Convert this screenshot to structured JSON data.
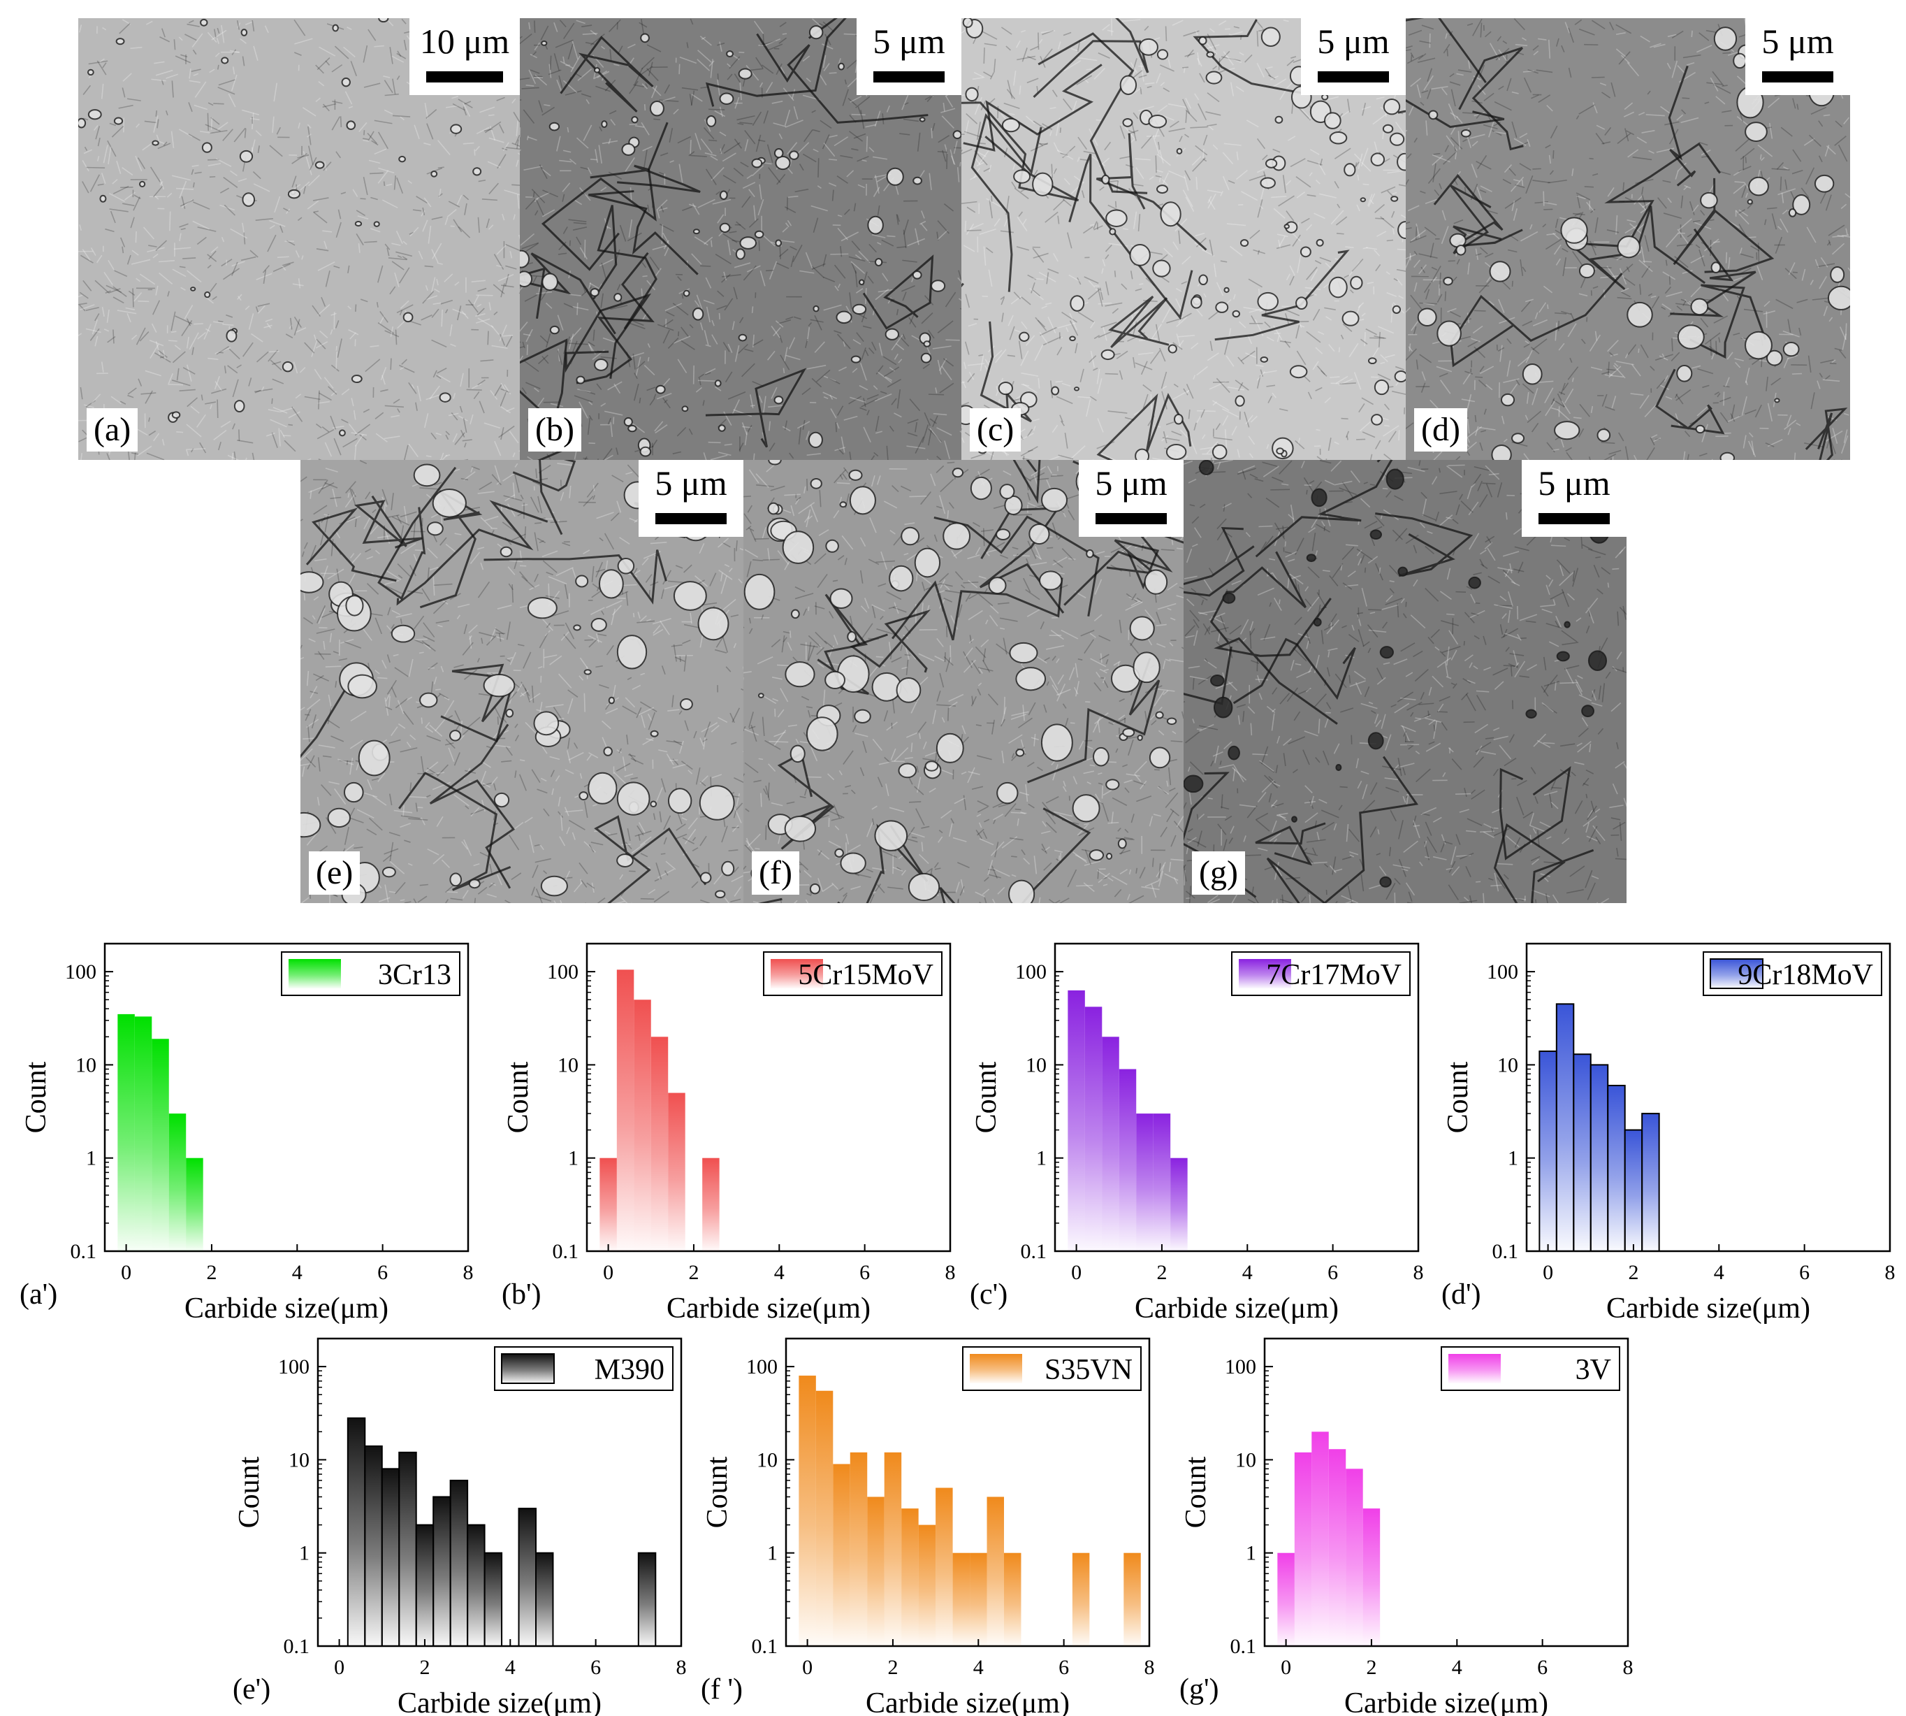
{
  "sem_panels": [
    {
      "id": "a",
      "label": "(a)",
      "scale": "10 μm",
      "tone": "#b9b9b9"
    },
    {
      "id": "b",
      "label": "(b)",
      "scale": "5 μm",
      "tone": "#7e7e7e"
    },
    {
      "id": "c",
      "label": "(c)",
      "scale": "5 μm",
      "tone": "#c9c9c9"
    },
    {
      "id": "d",
      "label": "(d)",
      "scale": "5 μm",
      "tone": "#8c8c8c"
    },
    {
      "id": "e",
      "label": "(e)",
      "scale": "5 μm",
      "tone": "#a4a4a4"
    },
    {
      "id": "f",
      "label": "(f)",
      "scale": "5 μm",
      "tone": "#9b9b9b"
    },
    {
      "id": "g",
      "label": "(g)",
      "scale": "5 μm",
      "tone": "#7a7a7a"
    }
  ],
  "chart_data": [
    {
      "type": "bar",
      "panel": "(a')",
      "legend": "3Cr13",
      "color": "#00e000",
      "xlabel": "Carbide size(μm)",
      "ylabel": "Count",
      "yscale": "log",
      "ylim": [
        0.1,
        200
      ],
      "xlim": [
        -0.5,
        8
      ],
      "xticks": [
        0,
        2,
        4,
        6,
        8
      ],
      "yticks": [
        "0.1",
        "1",
        "10",
        "100"
      ],
      "bar_width": 0.4,
      "x": [
        0,
        0.4,
        0.8,
        1.2,
        1.6
      ],
      "values": [
        35,
        33,
        19,
        3,
        1
      ]
    },
    {
      "type": "bar",
      "panel": "(b')",
      "legend": "5Cr15MoV",
      "color": "#f05050",
      "xlabel": "Carbide size(μm)",
      "ylabel": "Count",
      "yscale": "log",
      "ylim": [
        0.1,
        200
      ],
      "xlim": [
        -0.5,
        8
      ],
      "xticks": [
        0,
        2,
        4,
        6,
        8
      ],
      "yticks": [
        "0.1",
        "1",
        "10",
        "100"
      ],
      "bar_width": 0.4,
      "x": [
        0,
        0.4,
        0.8,
        1.2,
        1.6,
        2.0,
        2.4
      ],
      "values": [
        1,
        105,
        50,
        20,
        5,
        0,
        1
      ]
    },
    {
      "type": "bar",
      "panel": "(c')",
      "legend": "7Cr17MoV",
      "color": "#8a22e0",
      "xlabel": "Carbide size(μm)",
      "ylabel": "Count",
      "yscale": "log",
      "ylim": [
        0.1,
        200
      ],
      "xlim": [
        -0.5,
        8
      ],
      "xticks": [
        0,
        2,
        4,
        6,
        8
      ],
      "yticks": [
        "0.1",
        "1",
        "10",
        "100"
      ],
      "bar_width": 0.4,
      "x": [
        0,
        0.4,
        0.8,
        1.2,
        1.6,
        2.0,
        2.4
      ],
      "values": [
        63,
        42,
        20,
        9,
        3,
        3,
        1
      ]
    },
    {
      "type": "bar",
      "panel": "(d')",
      "legend": "9Cr18MoV",
      "color": "#3a55d8",
      "xlabel": "Carbide size(μm)",
      "ylabel": "Count",
      "yscale": "log",
      "ylim": [
        0.1,
        200
      ],
      "xlim": [
        -0.5,
        8
      ],
      "xticks": [
        0,
        2,
        4,
        6,
        8
      ],
      "yticks": [
        "0.1",
        "1",
        "10",
        "100"
      ],
      "bar_width": 0.4,
      "x": [
        0,
        0.4,
        0.8,
        1.2,
        1.6,
        2.0,
        2.4
      ],
      "values": [
        14,
        45,
        13,
        10,
        6,
        2,
        3
      ]
    },
    {
      "type": "bar",
      "panel": "(e')",
      "legend": "M390",
      "color": "#111111",
      "xlabel": "Carbide size(μm)",
      "ylabel": "Count",
      "yscale": "log",
      "ylim": [
        0.1,
        200
      ],
      "xlim": [
        -0.5,
        8
      ],
      "xticks": [
        0,
        2,
        4,
        6,
        8
      ],
      "yticks": [
        "0.1",
        "1",
        "10",
        "100"
      ],
      "bar_width": 0.4,
      "x": [
        0.4,
        0.8,
        1.2,
        1.6,
        2.0,
        2.4,
        2.8,
        3.2,
        3.6,
        4.0,
        4.4,
        4.8,
        5.2,
        5.6,
        6.0,
        6.4,
        6.8,
        7.2
      ],
      "values": [
        28,
        14,
        8,
        12,
        2,
        4,
        6,
        2,
        1,
        0,
        3,
        1,
        0,
        0,
        0,
        0,
        0,
        1
      ]
    },
    {
      "type": "bar",
      "panel": "(f ')",
      "legend": "S35VN",
      "color": "#f08a1c",
      "xlabel": "Carbide size(μm)",
      "ylabel": "Count",
      "yscale": "log",
      "ylim": [
        0.1,
        200
      ],
      "xlim": [
        -0.5,
        8
      ],
      "xticks": [
        0,
        2,
        4,
        6,
        8
      ],
      "yticks": [
        "0.1",
        "1",
        "10",
        "100"
      ],
      "bar_width": 0.4,
      "x": [
        0,
        0.4,
        0.8,
        1.2,
        1.6,
        2.0,
        2.4,
        2.8,
        3.2,
        3.6,
        4.0,
        4.4,
        4.8,
        5.2,
        5.6,
        6.0,
        6.4,
        6.8,
        7.2,
        7.6
      ],
      "values": [
        80,
        55,
        9,
        12,
        4,
        12,
        3,
        2,
        5,
        1,
        1,
        4,
        1,
        0,
        0,
        0,
        1,
        0,
        0,
        1
      ]
    },
    {
      "type": "bar",
      "panel": "(g')",
      "legend": "3V",
      "color": "#f040e8",
      "xlabel": "Carbide size(μm)",
      "ylabel": "Count",
      "yscale": "log",
      "ylim": [
        0.1,
        200
      ],
      "xlim": [
        -0.5,
        8
      ],
      "xticks": [
        0,
        2,
        4,
        6,
        8
      ],
      "yticks": [
        "0.1",
        "1",
        "10",
        "100"
      ],
      "bar_width": 0.4,
      "x": [
        0,
        0.4,
        0.8,
        1.2,
        1.6,
        2.0
      ],
      "values": [
        1,
        12,
        20,
        13,
        8,
        3
      ]
    }
  ]
}
